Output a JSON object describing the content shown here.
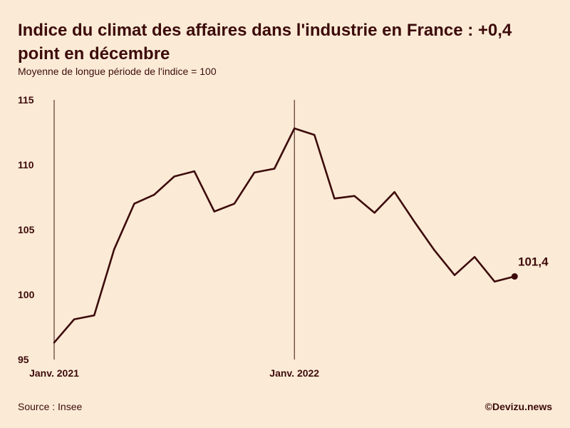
{
  "header": {
    "title": "Indice du climat des affaires dans l'industrie en France : +0,4 point en décembre",
    "subtitle": "Moyenne de longue période de l'indice = 100"
  },
  "footer": {
    "source": "Source : Insee",
    "credit": "©Devizu.news"
  },
  "colors": {
    "background": "#fbebd6",
    "line": "#3d0b0b",
    "text": "#3d0b0b"
  },
  "chart_data": {
    "type": "line",
    "title": "Indice du climat des affaires dans l'industrie en France : +0,4 point en décembre",
    "subtitle": "Moyenne de longue période de l'indice = 100",
    "xlabel": "",
    "ylabel": "",
    "ylim": [
      95,
      115
    ],
    "y_ticks": [
      95,
      100,
      105,
      110,
      115
    ],
    "y_tick_labels": [
      "95",
      "100",
      "105",
      "110",
      "115"
    ],
    "x_markers": [
      {
        "index": 0,
        "label": "Janv. 2021"
      },
      {
        "index": 12,
        "label": "Janv. 2022"
      }
    ],
    "grid": false,
    "series": [
      {
        "name": "Indice du climat des affaires dans l'industrie",
        "x": [
          "2021-01",
          "2021-02",
          "2021-03",
          "2021-04",
          "2021-05",
          "2021-06",
          "2021-07",
          "2021-08",
          "2021-09",
          "2021-10",
          "2021-11",
          "2021-12",
          "2022-01",
          "2022-02",
          "2022-03",
          "2022-04",
          "2022-05",
          "2022-06",
          "2022-07",
          "2022-08",
          "2022-09",
          "2022-10",
          "2022-11",
          "2022-12"
        ],
        "values": [
          96.3,
          98.1,
          98.4,
          103.5,
          107.0,
          107.7,
          109.1,
          109.5,
          106.4,
          107.0,
          109.4,
          109.7,
          112.8,
          112.3,
          107.4,
          107.6,
          106.3,
          107.9,
          105.6,
          103.4,
          101.5,
          102.9,
          101.0,
          101.4
        ]
      }
    ],
    "annotations": [
      {
        "index": 23,
        "label": "101,4"
      }
    ]
  }
}
